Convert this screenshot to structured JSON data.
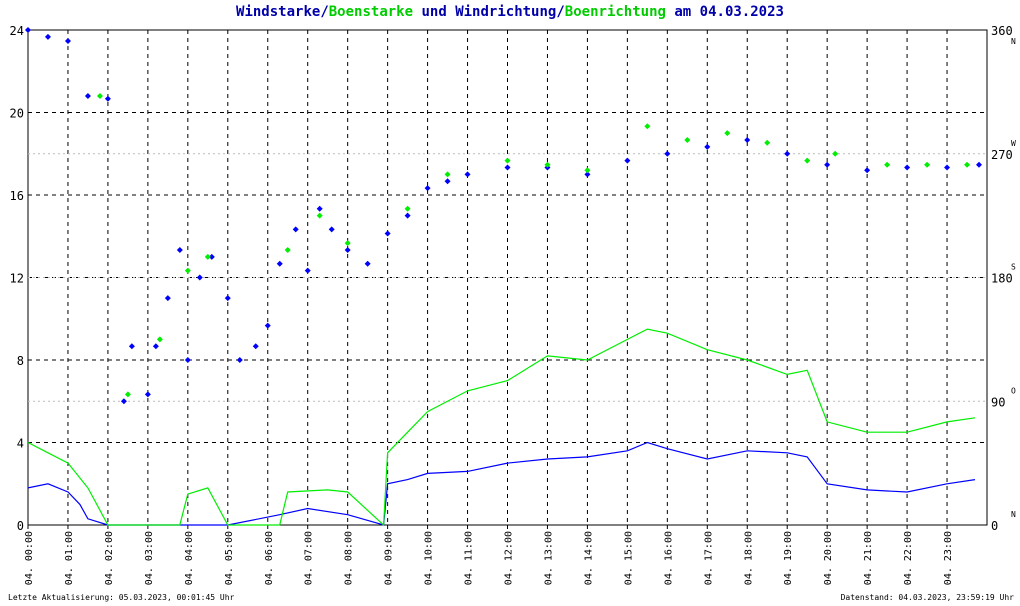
{
  "title": {
    "part1": "Windstarke",
    "sep1": "/",
    "part2": "Boenstarke",
    "mid": " und ",
    "part3": "Windrichtung",
    "sep2": "/",
    "part4": "Boenrichtung",
    "tail": " am 04.03.2023"
  },
  "footer": {
    "left": "Letzte Aktualisierung: 05.03.2023, 00:01:45 Uhr",
    "right": "Datenstand: 04.03.2023, 23:59:19 Uhr"
  },
  "colors": {
    "wind": "#0000ff",
    "gust": "#00ee00",
    "grid": "#000000",
    "title_dark": "#0000aa",
    "title_green": "#00cc00",
    "axis_marker": "#cc0000"
  },
  "chart_data": {
    "type": "line+scatter",
    "x_tick_labels": [
      "04. 00:00",
      "04. 01:00",
      "04. 02:00",
      "04. 03:00",
      "04. 04:00",
      "04. 05:00",
      "04. 06:00",
      "04. 07:00",
      "04. 08:00",
      "04. 09:00",
      "04. 10:00",
      "04. 11:00",
      "04. 12:00",
      "04. 13:00",
      "04. 14:00",
      "04. 15:00",
      "04. 16:00",
      "04. 17:00",
      "04. 18:00",
      "04. 19:00",
      "04. 20:00",
      "04. 21:00",
      "04. 22:00",
      "04. 23:00"
    ],
    "y_left_ticks": [
      "0",
      "4",
      "8",
      "12",
      "16",
      "20",
      "24"
    ],
    "y_left_range": [
      0,
      24
    ],
    "y_right_ticks": [
      "0",
      "90",
      "180",
      "270",
      "360"
    ],
    "y_right_range": [
      0,
      360
    ],
    "compass_labels": [
      {
        "deg": 0,
        "label": "N"
      },
      {
        "deg": 90,
        "label": "O"
      },
      {
        "deg": 180,
        "label": "S"
      },
      {
        "deg": 270,
        "label": "W"
      },
      {
        "deg": 360,
        "label": "N"
      }
    ],
    "x_range_hours": [
      0,
      24
    ],
    "grid": true,
    "series": [
      {
        "name": "Windstarke",
        "kind": "line",
        "axis": "left",
        "points": [
          [
            0.0,
            1.8
          ],
          [
            0.5,
            2.0
          ],
          [
            1.0,
            1.6
          ],
          [
            1.3,
            1.0
          ],
          [
            1.5,
            0.3
          ],
          [
            2.0,
            0
          ],
          [
            5.0,
            0
          ],
          [
            6.3,
            0.5
          ],
          [
            7.0,
            0.8
          ],
          [
            8.0,
            0.5
          ],
          [
            8.9,
            0
          ],
          [
            9.0,
            2.0
          ],
          [
            9.5,
            2.2
          ],
          [
            10.0,
            2.5
          ],
          [
            11.0,
            2.6
          ],
          [
            12.0,
            3.0
          ],
          [
            13.0,
            3.2
          ],
          [
            14.0,
            3.3
          ],
          [
            15.0,
            3.6
          ],
          [
            15.5,
            4.0
          ],
          [
            16.0,
            3.7
          ],
          [
            17.0,
            3.2
          ],
          [
            18.0,
            3.6
          ],
          [
            19.0,
            3.5
          ],
          [
            19.5,
            3.3
          ],
          [
            20.0,
            2.0
          ],
          [
            21.0,
            1.7
          ],
          [
            22.0,
            1.6
          ],
          [
            23.0,
            2.0
          ],
          [
            23.7,
            2.2
          ]
        ]
      },
      {
        "name": "Boenstarke",
        "kind": "line",
        "axis": "left",
        "points": [
          [
            0.0,
            4.0
          ],
          [
            0.5,
            3.5
          ],
          [
            1.0,
            3.0
          ],
          [
            1.5,
            1.8
          ],
          [
            2.0,
            0
          ],
          [
            3.8,
            0
          ],
          [
            4.0,
            1.5
          ],
          [
            4.5,
            1.8
          ],
          [
            5.0,
            0
          ],
          [
            6.3,
            0
          ],
          [
            6.5,
            1.6
          ],
          [
            7.5,
            1.7
          ],
          [
            8.0,
            1.6
          ],
          [
            8.9,
            0
          ],
          [
            9.0,
            3.5
          ],
          [
            9.5,
            4.5
          ],
          [
            10.0,
            5.5
          ],
          [
            11.0,
            6.5
          ],
          [
            12.0,
            7.0
          ],
          [
            13.0,
            8.2
          ],
          [
            14.0,
            8.0
          ],
          [
            15.0,
            9.0
          ],
          [
            15.5,
            9.5
          ],
          [
            16.0,
            9.3
          ],
          [
            17.0,
            8.5
          ],
          [
            18.0,
            8.0
          ],
          [
            19.0,
            7.3
          ],
          [
            19.5,
            7.5
          ],
          [
            20.0,
            5.0
          ],
          [
            21.0,
            4.5
          ],
          [
            22.0,
            4.5
          ],
          [
            23.0,
            5.0
          ],
          [
            23.7,
            5.2
          ]
        ]
      },
      {
        "name": "Windrichtung",
        "kind": "scatter",
        "axis": "right",
        "points": [
          [
            0.0,
            360
          ],
          [
            0.5,
            355
          ],
          [
            1.0,
            352
          ],
          [
            1.5,
            312
          ],
          [
            2.0,
            310
          ],
          [
            2.4,
            90
          ],
          [
            2.6,
            130
          ],
          [
            3.0,
            95
          ],
          [
            3.2,
            130
          ],
          [
            3.5,
            165
          ],
          [
            3.8,
            200
          ],
          [
            4.0,
            120
          ],
          [
            4.3,
            180
          ],
          [
            4.6,
            195
          ],
          [
            5.0,
            165
          ],
          [
            5.3,
            120
          ],
          [
            5.7,
            130
          ],
          [
            6.0,
            145
          ],
          [
            6.3,
            190
          ],
          [
            6.7,
            215
          ],
          [
            7.0,
            185
          ],
          [
            7.3,
            230
          ],
          [
            7.6,
            215
          ],
          [
            8.0,
            200
          ],
          [
            8.5,
            190
          ],
          [
            9.0,
            212
          ],
          [
            9.5,
            225
          ],
          [
            10.0,
            245
          ],
          [
            10.5,
            250
          ],
          [
            11.0,
            255
          ],
          [
            12.0,
            260
          ],
          [
            13.0,
            260
          ],
          [
            14.0,
            255
          ],
          [
            15.0,
            265
          ],
          [
            16.0,
            270
          ],
          [
            17.0,
            275
          ],
          [
            18.0,
            280
          ],
          [
            19.0,
            270
          ],
          [
            20.0,
            262
          ],
          [
            21.0,
            258
          ],
          [
            22.0,
            260
          ],
          [
            23.0,
            260
          ],
          [
            23.8,
            262
          ]
        ]
      },
      {
        "name": "Boenrichtung",
        "kind": "scatter",
        "axis": "right",
        "points": [
          [
            1.8,
            312
          ],
          [
            2.5,
            95
          ],
          [
            3.3,
            135
          ],
          [
            4.0,
            185
          ],
          [
            4.5,
            195
          ],
          [
            6.5,
            200
          ],
          [
            7.3,
            225
          ],
          [
            8.0,
            205
          ],
          [
            9.5,
            230
          ],
          [
            10.5,
            255
          ],
          [
            12.0,
            265
          ],
          [
            13.0,
            262
          ],
          [
            14.0,
            258
          ],
          [
            15.5,
            290
          ],
          [
            16.5,
            280
          ],
          [
            17.5,
            285
          ],
          [
            18.5,
            278
          ],
          [
            19.5,
            265
          ],
          [
            20.2,
            270
          ],
          [
            21.5,
            262
          ],
          [
            22.5,
            262
          ],
          [
            23.5,
            262
          ]
        ]
      }
    ]
  }
}
